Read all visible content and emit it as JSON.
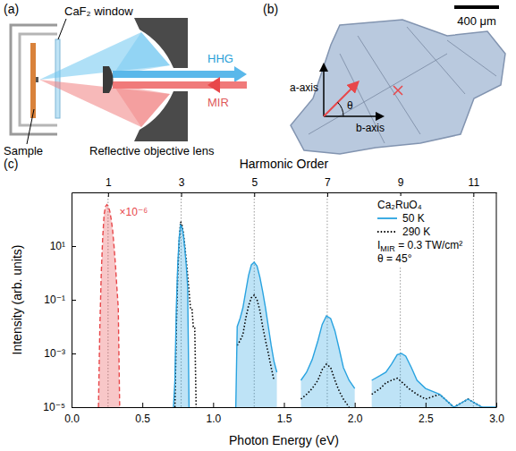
{
  "panel_a": {
    "label": "(a)",
    "window": "CaF₂ window",
    "sample": "Sample",
    "lens": "Reflective objective lens",
    "output": "HHG",
    "input": "MIR"
  },
  "panel_b": {
    "label": "(b)",
    "scale_bar": "400 μm",
    "axis_a": "a-axis",
    "axis_b": "b-axis",
    "angle": "θ"
  },
  "chart_data": {
    "type": "line",
    "panel_label": "(c)",
    "x_label": "Photon Energy (eV)",
    "y_label": "Intensity (arb. units)",
    "x2_label": "Harmonic Order",
    "xlim": [
      0,
      3
    ],
    "xticks": [
      {
        "value": 0,
        "label": "0.0"
      },
      0.5,
      {
        "value": 1,
        "label": "1.0"
      },
      1.5,
      {
        "value": 2,
        "label": "2.0"
      },
      2.5,
      {
        "value": 3,
        "label": "3.0"
      }
    ],
    "x2ticks": [
      {
        "value": 0.258,
        "label": "1"
      },
      {
        "value": 0.774,
        "label": "3"
      },
      {
        "value": 1.29,
        "label": "5"
      },
      {
        "value": 1.806,
        "label": "7"
      },
      {
        "value": 2.322,
        "label": "9"
      },
      {
        "value": 2.838,
        "label": "11"
      }
    ],
    "ylim": [
      1e-05,
      1000
    ],
    "yticks": [
      {
        "value": 1e-05,
        "label": "10⁻⁵"
      },
      {
        "value": 0.001,
        "label": "10⁻³"
      },
      {
        "value": 0.1,
        "label": "10⁻¹"
      },
      {
        "value": 10,
        "label": "10¹"
      }
    ],
    "log": "y",
    "grid": true,
    "legend": "upper right",
    "legend_title": "Ca₂RuO₄",
    "annotations": [
      {
        "text": "×10⁻⁶"
      },
      {
        "text": "I",
        "subscript": "MIR",
        "after": " = 0.3 TW/cm²"
      },
      {
        "text": "θ = 45°"
      }
    ],
    "series": [
      {
        "name": "50 K",
        "color": "#29a3e0",
        "line_style": "solid",
        "x": [
          0.72,
          0.73,
          0.74,
          0.75,
          0.76,
          0.77,
          0.78,
          0.79,
          0.8,
          0.81,
          0.82,
          0.83,
          null,
          1.16,
          1.17,
          1.19,
          1.21,
          1.23,
          1.25,
          1.27,
          1.29,
          1.31,
          1.33,
          1.35,
          1.37,
          1.39,
          1.41,
          1.43,
          1.45,
          null,
          1.62,
          1.66,
          1.7,
          1.74,
          1.77,
          1.8,
          1.83,
          1.86,
          1.89,
          1.92,
          1.96,
          2.0,
          null,
          2.12,
          2.18,
          2.22,
          2.26,
          2.3,
          2.33,
          2.36,
          2.4,
          2.44,
          2.5,
          2.6,
          2.7,
          2.8,
          2.9,
          3.0
        ],
        "values": [
          1e-05,
          0.0001,
          0.05,
          2,
          20,
          60,
          50,
          25,
          8,
          2,
          0.3,
          1e-05,
          null,
          1e-05,
          0.01,
          0.02,
          0.05,
          0.2,
          0.8,
          2,
          2.5,
          1.8,
          0.7,
          0.2,
          0.05,
          0.01,
          0.002,
          0.0005,
          0.0002,
          null,
          0.0001,
          0.0002,
          0.0006,
          0.003,
          0.012,
          0.025,
          0.02,
          0.007,
          0.0015,
          0.0003,
          0.0001,
          5e-05,
          null,
          0.0001,
          0.00015,
          0.0002,
          0.0004,
          0.0009,
          0.001,
          0.0008,
          0.0003,
          0.0001,
          5e-05,
          3e-05,
          1e-05,
          2e-05,
          1e-05,
          1e-05
        ]
      },
      {
        "name": "290 K",
        "color": "#000000",
        "line_style": "dotted",
        "x": [
          0.73,
          0.74,
          0.75,
          0.76,
          0.77,
          0.78,
          0.79,
          0.8,
          0.81,
          0.82,
          0.83,
          0.84,
          0.85,
          0.86,
          0.87,
          0.88,
          null,
          1.17,
          1.19,
          1.21,
          1.23,
          1.25,
          1.27,
          1.29,
          1.31,
          1.33,
          1.35,
          1.37,
          1.39,
          1.41,
          1.43,
          null,
          1.62,
          1.66,
          1.7,
          1.74,
          1.77,
          1.8,
          1.83,
          1.86,
          1.89,
          1.92,
          1.96,
          null,
          2.12,
          2.18,
          2.22,
          2.26,
          2.3,
          2.34,
          2.38,
          2.44,
          2.5,
          2.6,
          2.7,
          2.8,
          2.9
        ],
        "values": [
          1e-05,
          0.01,
          1,
          15,
          80,
          60,
          30,
          10,
          3,
          0.8,
          0.2,
          0.05,
          0.05,
          0.01,
          0.01,
          1e-05,
          null,
          0.002,
          0.003,
          0.005,
          0.02,
          0.06,
          0.12,
          0.15,
          0.1,
          0.04,
          0.01,
          0.003,
          0.001,
          0.0003,
          0.0001,
          null,
          2e-05,
          3e-05,
          5e-05,
          0.0001,
          0.00025,
          0.0004,
          0.0003,
          0.0001,
          4e-05,
          2e-05,
          1e-05,
          null,
          3e-05,
          5e-05,
          8e-05,
          0.0001,
          0.00012,
          8e-05,
          5e-05,
          3e-05,
          2e-05,
          3e-05,
          1e-05,
          2e-05,
          1e-05
        ]
      },
      {
        "color": "#e8474a",
        "line_style": "dashed",
        "x": [
          0.19,
          0.2,
          0.21,
          0.22,
          0.23,
          0.24,
          0.25,
          0.26,
          0.27,
          0.28,
          0.29,
          0.3,
          0.31,
          0.32,
          0.33,
          0.34
        ],
        "values": [
          1e-05,
          0.01,
          1,
          20,
          150,
          300,
          350,
          300,
          200,
          100,
          40,
          10,
          2,
          0.3,
          0.05,
          1e-05
        ]
      }
    ]
  }
}
